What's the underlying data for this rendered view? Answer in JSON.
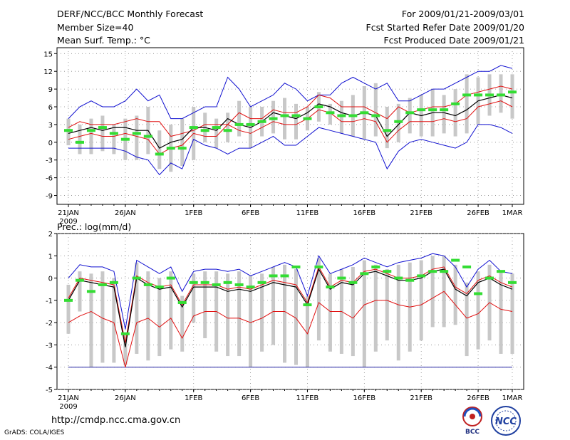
{
  "header": {
    "title": "DERF/NCC/BCC Monthly Forecast",
    "member_size": "Member Size=40",
    "variable1": "Mean Surf. Temp.: °C",
    "period": "For 2009/01/21-2009/03/01",
    "refer_date": "Fcst Started Refer Date 2009/01/20",
    "produced_date": "Fcst Produced Date 2009/01/21"
  },
  "variable2": "Prec.: log(mm/d)",
  "footer": {
    "url": "http://cmdp.ncc.cma.gov.cn",
    "credit": "GrADS: COLA/IGES",
    "logo1": "BCC",
    "logo2": "NCC"
  },
  "colors": {
    "max_min": "#1010d0",
    "pct": "#e01010",
    "mean": "#000000",
    "obs": "#33dd33",
    "box": "#c8c8c8"
  },
  "chart_data": [
    {
      "type": "line",
      "title": "Mean Surf. Temp.: °C",
      "x_days": 40,
      "x_tick_labels": [
        {
          "day": 0,
          "label": "21JAN"
        },
        {
          "day": 5,
          "label": "26JAN"
        },
        {
          "day": 11,
          "label": "1FEB"
        },
        {
          "day": 16,
          "label": "6FEB"
        },
        {
          "day": 21,
          "label": "11FEB"
        },
        {
          "day": 26,
          "label": "16FEB"
        },
        {
          "day": 31,
          "label": "21FEB"
        },
        {
          "day": 36,
          "label": "26FEB"
        },
        {
          "day": 39,
          "label": "1MAR"
        }
      ],
      "year_label": "2009",
      "ylim": [
        -10.5,
        16
      ],
      "yticks": [
        15,
        12,
        9,
        6,
        3,
        0,
        -3,
        -6,
        -9
      ],
      "series": [
        {
          "name": "max",
          "values": [
            4,
            6,
            7,
            6,
            6,
            7,
            9,
            7,
            8,
            4,
            4,
            5,
            6,
            6,
            11,
            9,
            6,
            7,
            8,
            10,
            9,
            7,
            8,
            8,
            10,
            11,
            10,
            9,
            10,
            7,
            7,
            8,
            9,
            9,
            10,
            11,
            12,
            12,
            13,
            12.5
          ]
        },
        {
          "name": "p75",
          "values": [
            2.5,
            3.5,
            3,
            3,
            3,
            3.5,
            4,
            3.5,
            3.5,
            1,
            1.5,
            2,
            3,
            3,
            3,
            5,
            4,
            4,
            5.5,
            5,
            5,
            6,
            8,
            7.5,
            6,
            6,
            6,
            5,
            4,
            6,
            5,
            5.5,
            6,
            6,
            6.5,
            8,
            8.5,
            9,
            9.5,
            9
          ]
        },
        {
          "name": "mean",
          "values": [
            1.5,
            2,
            2.5,
            2,
            2.5,
            2.5,
            2,
            2,
            -1,
            0,
            0.5,
            2.5,
            2.5,
            2,
            4,
            3,
            2.5,
            3.5,
            5,
            4.5,
            4,
            5,
            6.5,
            6,
            5,
            4.5,
            5,
            4.5,
            1,
            3,
            5,
            4.5,
            5,
            5,
            4.5,
            5.5,
            7,
            7.5,
            8,
            7.5
          ]
        },
        {
          "name": "p25",
          "values": [
            0.5,
            1,
            1.5,
            1,
            1,
            1.5,
            1,
            0.5,
            -2,
            -1,
            -0.5,
            1.5,
            1,
            1,
            3,
            2,
            1.5,
            2.5,
            3.5,
            3,
            3,
            4,
            5.5,
            5,
            3.5,
            3.5,
            4,
            3.5,
            0,
            2,
            3.5,
            3.5,
            3.5,
            4,
            3.5,
            4,
            6,
            6.5,
            7,
            6
          ]
        },
        {
          "name": "min",
          "values": [
            -1,
            -1,
            -1,
            -1,
            -1,
            -1.5,
            -2.5,
            -3,
            -5.5,
            -3.5,
            -4.5,
            0.5,
            -0.5,
            -1,
            -2,
            -1,
            -1,
            0,
            1,
            -0.5,
            -0.5,
            1,
            2.5,
            2,
            1.5,
            1,
            0.5,
            0,
            -4.5,
            -1.5,
            0,
            0.5,
            0,
            -0.5,
            -1,
            0,
            3,
            3,
            2.5,
            1.5
          ]
        },
        {
          "name": "obs",
          "values": [
            2,
            0,
            2,
            2.5,
            1.5,
            0.5,
            1.5,
            1,
            -2,
            -1,
            -1,
            2.5,
            2,
            2.5,
            2,
            3,
            3,
            3.5,
            4,
            4.5,
            4.5,
            4,
            6,
            5,
            4.5,
            4.5,
            5,
            4.5,
            2,
            3.5,
            5,
            5.5,
            5.5,
            5.5,
            6.5,
            8,
            8,
            8,
            8,
            8.5
          ]
        },
        {
          "name": "box_hi",
          "values": [
            4,
            3,
            4,
            4.5,
            3,
            4,
            4.5,
            6,
            2,
            3,
            4,
            6,
            5,
            4,
            5,
            7,
            6,
            6,
            7,
            7.5,
            6.5,
            6,
            8.5,
            6.5,
            7,
            8,
            9.5,
            10,
            6,
            6.5,
            7.5,
            8,
            9,
            8,
            9,
            11.5,
            11,
            11.5,
            11.5,
            11.5
          ]
        },
        {
          "name": "box_lo",
          "values": [
            -0.5,
            -2,
            -2,
            -1.5,
            -2,
            -3,
            -3,
            -2,
            -4.5,
            -5,
            -4,
            -3,
            0,
            -1,
            0,
            1,
            -1,
            1,
            1.5,
            0.5,
            0.5,
            2,
            3.5,
            3,
            1.5,
            1,
            0.5,
            1,
            -1,
            0,
            1.5,
            1,
            1,
            1.5,
            1,
            1.5,
            3,
            4.5,
            5,
            4
          ]
        }
      ]
    },
    {
      "type": "line",
      "title": "Prec.: log(mm/d)",
      "x_days": 40,
      "x_tick_labels": [
        {
          "day": 0,
          "label": "21JAN"
        },
        {
          "day": 5,
          "label": "26JAN"
        },
        {
          "day": 11,
          "label": "1FEB"
        },
        {
          "day": 16,
          "label": "6FEB"
        },
        {
          "day": 21,
          "label": "11FEB"
        },
        {
          "day": 26,
          "label": "16FEB"
        },
        {
          "day": 31,
          "label": "21FEB"
        },
        {
          "day": 36,
          "label": "26FEB"
        },
        {
          "day": 39,
          "label": "1MAR"
        }
      ],
      "year_label": "2009",
      "ylim": [
        -5,
        2
      ],
      "yticks": [
        2,
        1,
        0,
        -1,
        -2,
        -3,
        -4,
        -5
      ],
      "reference_line": -4,
      "series": [
        {
          "name": "max",
          "values": [
            0,
            0.6,
            0.5,
            0.5,
            0.3,
            -2.3,
            0.8,
            0.5,
            0.2,
            0.5,
            -0.6,
            0.3,
            0.4,
            0.4,
            0.3,
            0.4,
            0.1,
            0.3,
            0.5,
            0.7,
            0.5,
            -0.8,
            1,
            0.2,
            0.4,
            0.6,
            0.9,
            0.7,
            0.5,
            0.7,
            0.8,
            0.9,
            1.1,
            1,
            0.5,
            -0.4,
            0.4,
            0.8,
            0.3,
            0.2
          ]
        },
        {
          "name": "p75",
          "values": [
            -0.9,
            0,
            -0.1,
            -0.2,
            -0.3,
            -2.9,
            0.1,
            -0.2,
            -0.4,
            -0.3,
            -1.2,
            -0.3,
            -0.3,
            -0.3,
            -0.5,
            -0.4,
            -0.5,
            -0.3,
            -0.1,
            -0.2,
            -0.3,
            -1.1,
            0.5,
            -0.4,
            -0.1,
            -0.2,
            0.3,
            0.4,
            0.2,
            0,
            0,
            0.1,
            0.4,
            0.5,
            -0.4,
            -0.7,
            -0.1,
            0.1,
            -0.2,
            -0.4
          ]
        },
        {
          "name": "mean",
          "values": [
            -1,
            -0.1,
            -0.2,
            -0.3,
            -0.4,
            -3.1,
            0,
            -0.3,
            -0.5,
            -0.4,
            -1.3,
            -0.4,
            -0.4,
            -0.4,
            -0.6,
            -0.5,
            -0.6,
            -0.4,
            -0.2,
            -0.3,
            -0.4,
            -1.2,
            0.4,
            -0.5,
            -0.2,
            -0.3,
            0.2,
            0.3,
            0.1,
            -0.1,
            -0.1,
            0,
            0.3,
            0.4,
            -0.5,
            -0.8,
            -0.2,
            0,
            -0.3,
            -0.5
          ]
        },
        {
          "name": "min",
          "values": [
            -2,
            -1.7,
            -1.5,
            -1.8,
            -2,
            -4,
            -2,
            -1.8,
            -2.2,
            -1.8,
            -2.7,
            -1.7,
            -1.5,
            -1.5,
            -1.8,
            -1.8,
            -2,
            -1.8,
            -1.5,
            -1.5,
            -1.8,
            -2.5,
            -1.1,
            -1.5,
            -1.5,
            -1.8,
            -1.2,
            -1,
            -1,
            -1.2,
            -1.3,
            -1.2,
            -0.9,
            -0.6,
            -1.2,
            -1.8,
            -1.6,
            -1.1,
            -1.4,
            -1.5
          ]
        },
        {
          "name": "obs",
          "values": [
            -1,
            -0.1,
            -0.6,
            -0.3,
            -0.2,
            -2.5,
            0,
            -0.3,
            -0.4,
            0,
            -1.1,
            -0.2,
            -0.2,
            -0.3,
            -0.2,
            -0.3,
            -0.4,
            -0.2,
            0.1,
            0.1,
            0.5,
            -1.2,
            0.5,
            -0.4,
            0,
            -0.2,
            0.2,
            0.5,
            0.3,
            0,
            -0.1,
            0.1,
            0.3,
            0.3,
            0.8,
            0.5,
            -0.7,
            0,
            0.3,
            -0.2
          ]
        },
        {
          "name": "box_hi",
          "values": [
            -0.3,
            0.3,
            0.2,
            0.3,
            0,
            -2.5,
            0.7,
            0.3,
            0,
            0.3,
            -0.8,
            0.2,
            0.3,
            0.3,
            0.2,
            0.3,
            0.1,
            0.2,
            0.5,
            0.6,
            0.4,
            -0.8,
            0.9,
            0.2,
            0.4,
            0.5,
            0.8,
            0.6,
            0.4,
            0.6,
            0.7,
            0.8,
            1,
            1,
            0.6,
            -0.2,
            0.3,
            0.6,
            0.3,
            0.2
          ]
        },
        {
          "name": "box_lo",
          "values": [
            -2.5,
            -1.5,
            -4,
            -3.8,
            -3.8,
            -3.9,
            -3.4,
            -3.7,
            -3.5,
            -3.2,
            -3.3,
            -2,
            -2.7,
            -3.3,
            -3.5,
            -3.5,
            -4,
            -3.3,
            -3,
            -3.8,
            -3.9,
            -4,
            -2.8,
            -3.3,
            -3.4,
            -3.5,
            -4,
            -3.3,
            -2.8,
            -3.7,
            -3.3,
            -2.8,
            -2.2,
            -2.2,
            -2.1,
            -3.5,
            -3.2,
            -2.8,
            -3.4,
            -3.4
          ]
        }
      ]
    }
  ]
}
